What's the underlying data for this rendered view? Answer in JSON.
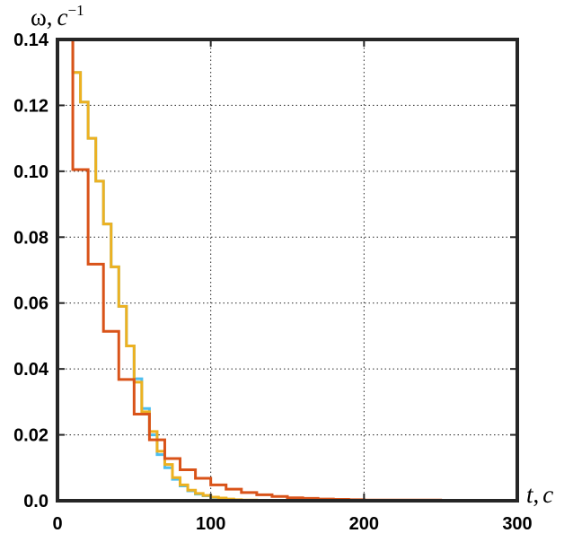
{
  "chart_data": {
    "type": "line",
    "step": true,
    "grid": true,
    "grid_style": "dotted",
    "xlabel": {
      "symbol": "t",
      "sep": ",",
      "unit": "c"
    },
    "ylabel": {
      "symbol": "ω",
      "sep": ",",
      "unit": "c",
      "exponent": "−1"
    },
    "xlim": [
      0,
      300
    ],
    "ylim": [
      0,
      0.14
    ],
    "xticks": [
      0,
      100,
      200,
      300
    ],
    "xtick_labels": [
      "0",
      "100",
      "200",
      "300"
    ],
    "yticks": [
      0,
      0.02,
      0.04,
      0.06,
      0.08,
      0.1,
      0.12,
      0.14
    ],
    "ytick_labels": [
      "0.0",
      "0.02",
      "0.04",
      "0.06",
      "0.08",
      "0.10",
      "0.12",
      "0.14"
    ],
    "series": [
      {
        "color": "#4DBEEE",
        "x": [
          0,
          5,
          10,
          15,
          20,
          25,
          30,
          35,
          40,
          45,
          50,
          55,
          60,
          65,
          70,
          75,
          80,
          85,
          90,
          95,
          100,
          105,
          110,
          115,
          120,
          130,
          140,
          160,
          180,
          200,
          250,
          300
        ],
        "y": [
          0.14,
          0.14,
          0.13,
          0.121,
          0.11,
          0.097,
          0.084,
          0.071,
          0.059,
          0.047,
          0.037,
          0.028,
          0.02,
          0.014,
          0.01,
          0.0065,
          0.0045,
          0.003,
          0.002,
          0.0015,
          0.001,
          0.0007,
          0.0004,
          0.0002,
          0.0001,
          5e-05,
          2e-05,
          0,
          0,
          0,
          0,
          0
        ]
      },
      {
        "color": "#EDB120",
        "x": [
          0,
          5,
          10,
          15,
          20,
          25,
          30,
          35,
          40,
          45,
          50,
          55,
          60,
          65,
          70,
          75,
          80,
          85,
          90,
          95,
          100,
          105,
          110,
          115,
          120,
          130,
          140,
          160,
          180,
          200,
          250,
          300
        ],
        "y": [
          0.14,
          0.14,
          0.13,
          0.121,
          0.11,
          0.097,
          0.084,
          0.071,
          0.059,
          0.047,
          0.036,
          0.027,
          0.021,
          0.015,
          0.011,
          0.007,
          0.0048,
          0.0032,
          0.0022,
          0.0016,
          0.0011,
          0.0008,
          0.0005,
          0.0003,
          0.0002,
          0.0001,
          5e-05,
          2e-05,
          0,
          0,
          0,
          0
        ]
      },
      {
        "color": "#D95319",
        "x": [
          0,
          10,
          20,
          30,
          40,
          50,
          60,
          70,
          80,
          90,
          100,
          110,
          120,
          130,
          140,
          150,
          160,
          170,
          180,
          190,
          200,
          250,
          300
        ],
        "y": [
          0.14,
          0.1005,
          0.0718,
          0.0514,
          0.0368,
          0.0263,
          0.0185,
          0.0128,
          0.0094,
          0.0068,
          0.0048,
          0.0035,
          0.0025,
          0.0018,
          0.0013,
          0.0009,
          0.0007,
          0.0005,
          0.0004,
          0.0003,
          0.0002,
          0.0001,
          0.0001
        ]
      }
    ]
  }
}
